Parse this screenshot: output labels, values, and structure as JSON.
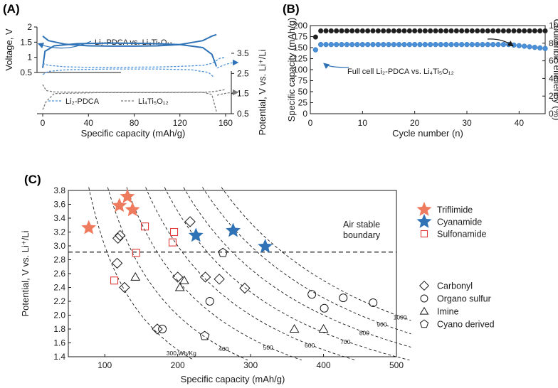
{
  "colors": {
    "blue": "#2f73b6",
    "light_blue": "#4a90d9",
    "gray": "#777777",
    "salmon": "#ef7b5f",
    "red_square": "#e23b3b",
    "black": "#1a1a1a"
  },
  "panels": {
    "A": {
      "label": "(A)"
    },
    "B": {
      "label": "(B)"
    },
    "C": {
      "label": "(C)"
    }
  },
  "chart_data": [
    {
      "id": "A",
      "type": "line",
      "xlabel": "Specific capacity (mAh/g)",
      "ylabel_left": "Voltage, V",
      "ylabel_right": "Potential, V vs. Li⁺/Li",
      "xlim": [
        -5,
        165
      ],
      "x_ticks": [
        0,
        40,
        80,
        120,
        160
      ],
      "top": {
        "ylim": [
          0.5,
          2.0
        ],
        "y_ticks": [
          0.5,
          1.0,
          1.5,
          2.0
        ],
        "y_tick_labels": [
          "0.5",
          "1",
          "1.5",
          "2"
        ],
        "annotation": "Li₂-PDCA vs. Li₄Ti₅O₁₂",
        "charge": {
          "x": [
            0,
            5,
            20,
            40,
            60,
            80,
            100,
            120,
            140,
            148,
            152
          ],
          "y": [
            1.7,
            1.55,
            1.43,
            1.38,
            1.37,
            1.37,
            1.38,
            1.42,
            1.55,
            1.7,
            1.75
          ]
        },
        "discharge": {
          "x": [
            0,
            2,
            10,
            30,
            60,
            90,
            120,
            140,
            148,
            152
          ],
          "y": [
            0.65,
            1.2,
            1.38,
            1.45,
            1.47,
            1.46,
            1.42,
            1.32,
            1.1,
            0.7
          ]
        }
      },
      "bottom": {
        "ylim": [
          0.5,
          3.5
        ],
        "y_ticks": [
          0.5,
          1.5,
          2.5,
          3.5
        ],
        "y_tick_labels": [
          "0.5",
          "1.5",
          "2.5",
          "3.5"
        ],
        "legend": [
          "Li₂-PDCA",
          "Li₄Ti₅O₁₂"
        ],
        "series": [
          {
            "name": "Li₂-PDCA",
            "x": [
              0,
              5,
              20,
              40,
              60,
              80,
              100,
              120,
              140,
              148,
              155,
              160
            ],
            "y": [
              3.0,
              2.9,
              2.83,
              2.8,
              2.8,
              2.81,
              2.82,
              2.85,
              2.9,
              3.0,
              3.25,
              3.3
            ]
          },
          {
            "name": "Li₂-PDCA",
            "x": [
              0,
              5,
              20,
              60,
              100,
              130,
              145,
              150
            ],
            "y": [
              2.45,
              2.6,
              2.68,
              2.72,
              2.72,
              2.68,
              2.55,
              2.3
            ]
          },
          {
            "name": "Li₄Ti₅O₁₂",
            "x": [
              0,
              3,
              10,
              50,
              100,
              140,
              150,
              155,
              160
            ],
            "y": [
              0.7,
              1.1,
              1.5,
              1.55,
              1.55,
              1.56,
              1.6,
              1.65,
              1.7
            ]
          },
          {
            "name": "Li₄Ti₅O₁₂",
            "x": [
              0,
              3,
              10,
              50,
              100,
              140,
              148,
              152
            ],
            "y": [
              1.95,
              1.65,
              1.58,
              1.56,
              1.56,
              1.57,
              1.45,
              0.6
            ]
          }
        ]
      }
    },
    {
      "id": "B",
      "type": "scatter",
      "xlabel": "Cycle number (n)",
      "ylabel_left": "Specific capacity (mAh/g)",
      "ylabel_right": "Coulombic efficiency (%)",
      "xlim": [
        0,
        45
      ],
      "x_ticks": [
        0,
        10,
        20,
        30,
        40
      ],
      "ylim_left": [
        0,
        200
      ],
      "y_ticks_left": [
        0,
        25,
        50,
        75,
        100,
        125,
        150,
        175,
        200
      ],
      "ylim_right": [
        0,
        100
      ],
      "y_ticks_right": [
        0,
        20,
        40,
        60,
        80,
        100
      ],
      "annotation": "Full cell Li₂-PDCA vs. Li₄Ti₅O₁₂",
      "capacity": {
        "start": 145,
        "plateau": 157,
        "end": 148
      },
      "efficiency": {
        "first": 87,
        "plateau": 94
      }
    },
    {
      "id": "C",
      "type": "scatter",
      "xlabel": "Specific capacity (mAh/g)",
      "ylabel": "Potential, V vs. Li⁺/Li",
      "xlim": [
        50,
        500
      ],
      "x_ticks": [
        100,
        200,
        300,
        400,
        500
      ],
      "ylim": [
        1.4,
        3.8
      ],
      "y_ticks": [
        1.4,
        1.6,
        1.8,
        2.0,
        2.2,
        2.4,
        2.6,
        2.8,
        3.0,
        3.2,
        3.4,
        3.6,
        3.8
      ],
      "boundary": {
        "y": 2.91,
        "label_line1": "Air stable",
        "label_line2": "boundary"
      },
      "energy_contours": [
        {
          "value": 300,
          "label": "300 Wh/Kg"
        },
        {
          "value": 400,
          "label": "400"
        },
        {
          "value": 500,
          "label": "500"
        },
        {
          "value": 600,
          "label": "600"
        },
        {
          "value": 700,
          "label": "700"
        },
        {
          "value": 800,
          "label": "800"
        },
        {
          "value": 900,
          "label": "900"
        },
        {
          "value": 1000,
          "label": "1000"
        }
      ],
      "series": [
        {
          "name": "Triflimide",
          "marker": "star",
          "color": "#ef7b5f",
          "points": [
            [
              78,
              3.26
            ],
            [
              120,
              3.58
            ],
            [
              131,
              3.71
            ],
            [
              138,
              3.52
            ]
          ]
        },
        {
          "name": "Cyanamide",
          "marker": "star",
          "color": "#2f73b6",
          "points": [
            [
              225,
              3.15
            ],
            [
              276,
              3.22
            ],
            [
              320,
              2.99
            ]
          ]
        },
        {
          "name": "Sulfonamide",
          "marker": "square",
          "color": "#e23b3b",
          "points": [
            [
              113,
              2.5
            ],
            [
              143,
              2.9
            ],
            [
              155,
              3.28
            ],
            [
              193,
              3.05
            ],
            [
              195,
              3.2
            ]
          ]
        },
        {
          "name": "Carbonyl",
          "marker": "diamond",
          "color": "#1a1a1a",
          "points": [
            [
              117,
              2.75
            ],
            [
              118,
              3.11
            ],
            [
              121,
              3.15
            ],
            [
              127,
              2.4
            ],
            [
              172,
              1.8
            ],
            [
              200,
              2.55
            ],
            [
              217,
              3.35
            ],
            [
              238,
              2.55
            ],
            [
              257,
              2.52
            ],
            [
              292,
              2.39
            ]
          ]
        },
        {
          "name": "Organo sulfur",
          "marker": "circle",
          "color": "#1a1a1a",
          "points": [
            [
              179,
              1.8
            ],
            [
              244,
              2.2
            ],
            [
              384,
              2.3
            ],
            [
              401,
              2.1
            ],
            [
              427,
              2.25
            ],
            [
              468,
              2.18
            ]
          ]
        },
        {
          "name": "Imine",
          "marker": "triangle",
          "color": "#1a1a1a",
          "points": [
            [
              142,
              2.55
            ],
            [
              203,
              2.4
            ],
            [
              209,
              2.5
            ],
            [
              360,
              1.8
            ],
            [
              400,
              1.8
            ]
          ]
        },
        {
          "name": "Cyano derived",
          "marker": "pentagon",
          "color": "#1a1a1a",
          "points": [
            [
              237,
              1.7
            ],
            [
              262,
              2.9
            ]
          ]
        }
      ]
    }
  ]
}
